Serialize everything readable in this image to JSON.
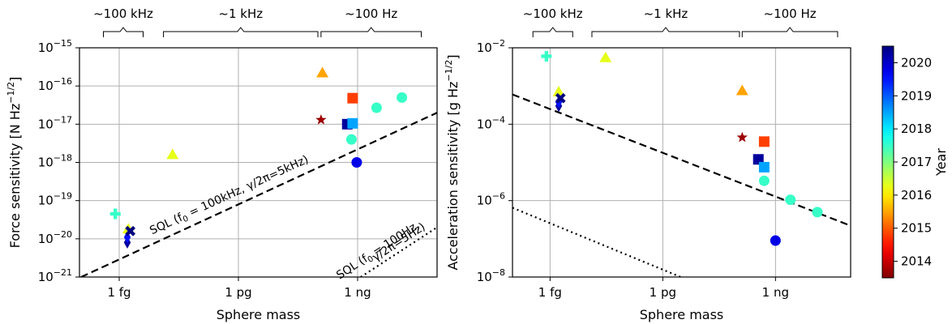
{
  "chart_data": [
    {
      "type": "scatter",
      "xlabel": "Sphere mass",
      "ylabel": "Force sensitivity [N Hz",
      "ylabel_exp": "−1/2",
      "ylabel_end": "]",
      "xscale": "log",
      "yscale": "log",
      "xlim": [
        1e-19,
        1e-10
      ],
      "ylim": [
        1e-21,
        1e-15
      ],
      "grid": true,
      "x_ticks": [
        {
          "value": 1e-18,
          "label": "1 fg"
        },
        {
          "value": 1e-15,
          "label": "1 pg"
        },
        {
          "value": 1e-12,
          "label": "1 ng"
        }
      ],
      "y_ticks": [
        {
          "value": 1e-21,
          "base": "10",
          "exp": "−21"
        },
        {
          "value": 1e-20,
          "base": "10",
          "exp": "−20"
        },
        {
          "value": 1e-19,
          "base": "10",
          "exp": "−19"
        },
        {
          "value": 1e-18,
          "base": "10",
          "exp": "−18"
        },
        {
          "value": 1e-17,
          "base": "10",
          "exp": "−17"
        },
        {
          "value": 1e-16,
          "base": "10",
          "exp": "−16"
        },
        {
          "value": 1e-15,
          "base": "10",
          "exp": "−15"
        }
      ],
      "frequency_bands": [
        {
          "label": "~100 kHz",
          "x_start": 4e-19,
          "x_end": 4e-18
        },
        {
          "label": "~1 kHz",
          "x_start": 1.3e-17,
          "x_end": 1e-13
        },
        {
          "label": "~100 Hz",
          "x_start": 1.2e-13,
          "x_end": 4e-11
        }
      ],
      "lines": [
        {
          "label": "SQL (f",
          "sub": "0",
          "rest": " = 100kHz, γ/2π=5kHz)",
          "style": "dashed",
          "points": [
            [
              1.1e-19,
              1e-21
            ],
            [
              1e-10,
              2e-17
            ]
          ]
        },
        {
          "label": "SQL (f",
          "sub": "0",
          "rest": " = 100Hz,",
          "label2": "γ/2π=5Hz)",
          "style": "dotted",
          "points": [
            [
              1.2e-12,
              1e-21
            ],
            [
              1e-10,
              2e-20
            ]
          ]
        }
      ],
      "points": [
        {
          "marker": "plus",
          "x": 8e-19,
          "y": 4.5e-20,
          "year": 2017.5
        },
        {
          "marker": "triangle",
          "x": 1.7e-18,
          "y": 1.8e-20,
          "year": 2016.3
        },
        {
          "marker": "diamond",
          "x": 1.6e-18,
          "y": 8e-21,
          "year": 2020.3
        },
        {
          "marker": "diamond",
          "x": 1.6e-18,
          "y": 1.1e-20,
          "year": 2019.5
        },
        {
          "marker": "x",
          "x": 1.9e-18,
          "y": 1.6e-20,
          "year": 2020.5
        },
        {
          "marker": "triangle",
          "x": 2.2e-17,
          "y": 1.6e-18,
          "year": 2016.3
        },
        {
          "marker": "triangle",
          "x": 1.3e-13,
          "y": 2.2e-16,
          "year": 2015.5
        },
        {
          "marker": "star",
          "x": 1.2e-13,
          "y": 1.3e-17,
          "year": 2013.7
        },
        {
          "marker": "square",
          "x": 5.5e-13,
          "y": 1e-17,
          "year": 2020.3
        },
        {
          "marker": "square",
          "x": 7.5e-13,
          "y": 1.05e-17,
          "year": 2018.5
        },
        {
          "marker": "square",
          "x": 7.5e-13,
          "y": 4.8e-17,
          "year": 2014.8
        },
        {
          "marker": "circle",
          "x": 7e-13,
          "y": 4e-18,
          "year": 2017.5
        },
        {
          "marker": "circle",
          "x": 9.5e-13,
          "y": 1e-18,
          "year": 2019.8
        },
        {
          "marker": "circle",
          "x": 3e-12,
          "y": 2.7e-17,
          "year": 2017.5
        },
        {
          "marker": "circle",
          "x": 1.3e-11,
          "y": 5e-17,
          "year": 2017.5
        }
      ]
    },
    {
      "type": "scatter",
      "xlabel": "Sphere mass",
      "ylabel": "Acceleration sensitivity [g Hz",
      "ylabel_exp": "−1/2",
      "ylabel_end": "]",
      "xscale": "log",
      "yscale": "log",
      "xlim": [
        1e-19,
        1e-10
      ],
      "ylim": [
        1e-08,
        0.01
      ],
      "grid": true,
      "x_ticks": [
        {
          "value": 1e-18,
          "label": "1 fg"
        },
        {
          "value": 1e-15,
          "label": "1 pg"
        },
        {
          "value": 1e-12,
          "label": "1 ng"
        }
      ],
      "y_ticks": [
        {
          "value": 1e-08,
          "base": "10",
          "exp": "−8"
        },
        {
          "value": 1e-06,
          "base": "10",
          "exp": "−6"
        },
        {
          "value": 0.0001,
          "base": "10",
          "exp": "−4"
        },
        {
          "value": 0.01,
          "base": "10",
          "exp": "−2"
        }
      ],
      "frequency_bands": [
        {
          "label": "~100 kHz",
          "x_start": 3.5e-19,
          "x_end": 4e-18
        },
        {
          "label": "~1 kHz",
          "x_start": 1.3e-17,
          "x_end": 1.1e-13
        },
        {
          "label": "~100 Hz",
          "x_start": 1.3e-13,
          "x_end": 4.5e-11
        }
      ],
      "lines": [
        {
          "style": "dashed",
          "points": [
            [
              1e-19,
              0.0006
            ],
            [
              1e-10,
              2.2e-07
            ]
          ]
        },
        {
          "style": "dotted",
          "points": [
            [
              1e-19,
              6.5e-07
            ],
            [
              3e-15,
              1e-08
            ]
          ]
        }
      ],
      "points": [
        {
          "marker": "plus",
          "x": 8e-19,
          "y": 0.006,
          "year": 2017.5
        },
        {
          "marker": "triangle",
          "x": 3e-17,
          "y": 0.0055,
          "year": 2016.3
        },
        {
          "marker": "triangle",
          "x": 1.7e-18,
          "y": 0.0007,
          "year": 2016.3
        },
        {
          "marker": "diamond",
          "x": 1.7e-18,
          "y": 0.0003,
          "year": 2020.3
        },
        {
          "marker": "diamond",
          "x": 1.7e-18,
          "y": 0.00038,
          "year": 2019.5
        },
        {
          "marker": "x",
          "x": 1.9e-18,
          "y": 0.00048,
          "year": 2020.5
        },
        {
          "marker": "triangle",
          "x": 1.3e-13,
          "y": 0.00075,
          "year": 2015.5
        },
        {
          "marker": "star",
          "x": 1.3e-13,
          "y": 4.5e-05,
          "year": 2013.7
        },
        {
          "marker": "square",
          "x": 3.5e-13,
          "y": 1.2e-05,
          "year": 2020.3
        },
        {
          "marker": "square",
          "x": 5e-13,
          "y": 3.5e-05,
          "year": 2014.8
        },
        {
          "marker": "square",
          "x": 5e-13,
          "y": 7.5e-06,
          "year": 2018.5
        },
        {
          "marker": "circle",
          "x": 5e-13,
          "y": 3.3e-06,
          "year": 2017.5
        },
        {
          "marker": "circle",
          "x": 1e-12,
          "y": 9e-08,
          "year": 2019.8
        },
        {
          "marker": "circle",
          "x": 2.5e-12,
          "y": 1.05e-06,
          "year": 2017.5
        },
        {
          "marker": "circle",
          "x": 1.3e-11,
          "y": 5e-07,
          "year": 2017.5
        }
      ]
    }
  ],
  "colorbar": {
    "label": "Year",
    "range": [
      2013.5,
      2020.5
    ],
    "ticks": [
      "2014",
      "2015",
      "2016",
      "2017",
      "2018",
      "2019",
      "2020"
    ]
  }
}
